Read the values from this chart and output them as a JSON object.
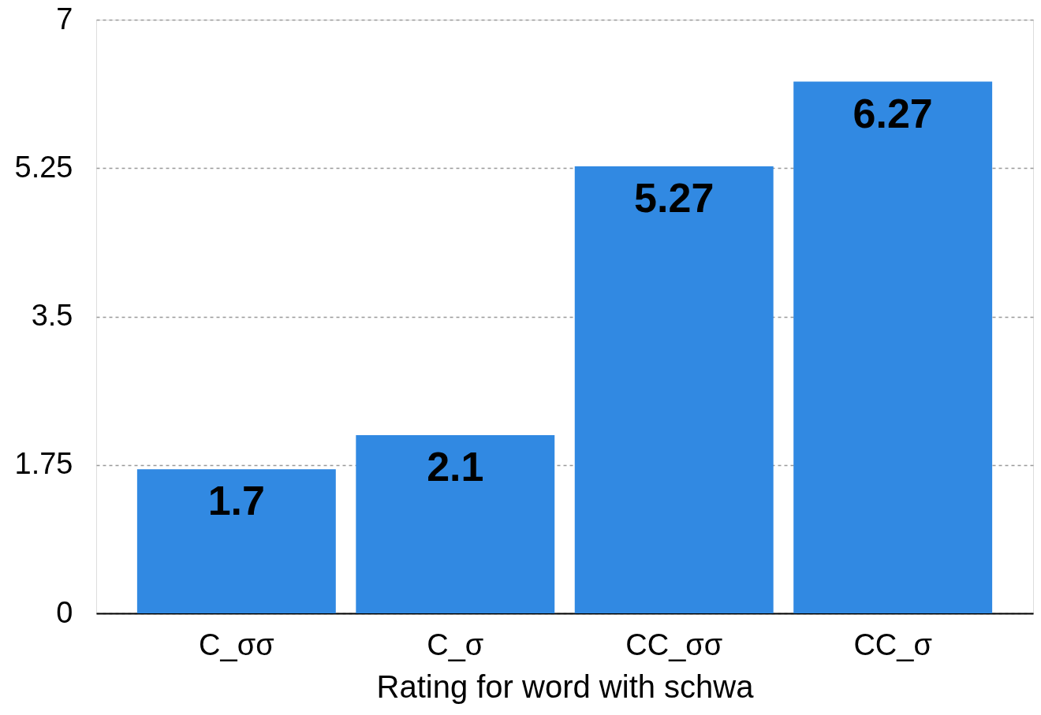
{
  "chart_data": {
    "type": "bar",
    "xlabel": "Rating for word with schwa",
    "categories": [
      "C_σσ",
      "C_σ",
      "CC_σσ",
      "CC_σ"
    ],
    "values": [
      1.7,
      2.1,
      5.27,
      6.27
    ],
    "color": "#3189e2",
    "ylim": [
      0,
      7
    ],
    "yticks": [
      0,
      1.75,
      3.5,
      5.25,
      7
    ],
    "grid": "y",
    "data_labels": true
  }
}
